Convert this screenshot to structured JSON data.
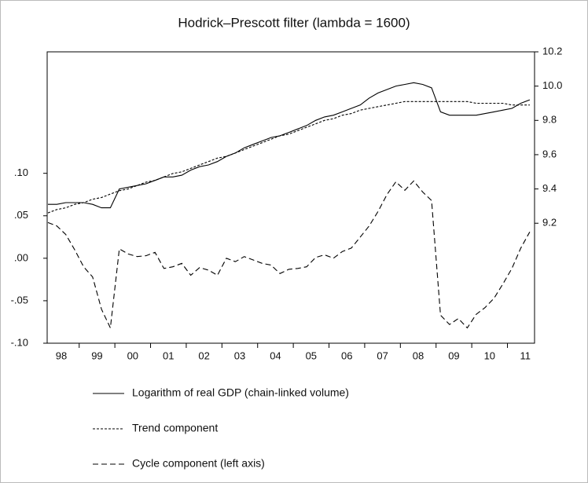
{
  "chart_data": {
    "type": "line",
    "title": "Hodrick–Prescott filter (lambda = 1600)",
    "categories": [
      "98",
      null,
      null,
      null,
      "99",
      null,
      null,
      null,
      "00",
      null,
      null,
      null,
      "01",
      null,
      null,
      null,
      "02",
      null,
      null,
      null,
      "03",
      null,
      null,
      null,
      "04",
      null,
      null,
      null,
      "05",
      null,
      null,
      null,
      "06",
      null,
      null,
      null,
      "07",
      null,
      null,
      null,
      "08",
      null,
      null,
      null,
      "09",
      null,
      null,
      null,
      "10",
      null,
      null,
      null,
      "11",
      null,
      null
    ],
    "series": [
      {
        "name": "Logarithm of real GDP (chain-linked volume)",
        "color": "#000000",
        "dash": "solid",
        "axis": "y2",
        "values": [
          9.31,
          9.31,
          9.32,
          9.32,
          9.32,
          9.31,
          9.29,
          9.29,
          9.4,
          9.41,
          9.42,
          9.43,
          9.45,
          9.47,
          9.47,
          9.48,
          9.51,
          9.53,
          9.54,
          9.56,
          9.59,
          9.61,
          9.64,
          9.66,
          9.68,
          9.7,
          9.71,
          9.73,
          9.75,
          9.77,
          9.8,
          9.82,
          9.83,
          9.85,
          9.87,
          9.89,
          9.93,
          9.96,
          9.98,
          10.0,
          10.01,
          10.02,
          10.01,
          9.99,
          9.85,
          9.83,
          9.83,
          9.83,
          9.83,
          9.84,
          9.85,
          9.86,
          9.87,
          9.9,
          9.92
        ]
      },
      {
        "name": "Trend component",
        "color": "#000000",
        "dash": "short",
        "axis": "y2",
        "values": [
          9.26,
          9.28,
          9.29,
          9.31,
          9.32,
          9.34,
          9.35,
          9.37,
          9.39,
          9.4,
          9.42,
          9.44,
          9.45,
          9.47,
          9.49,
          9.5,
          9.52,
          9.54,
          9.56,
          9.58,
          9.59,
          9.61,
          9.63,
          9.65,
          9.67,
          9.69,
          9.71,
          9.72,
          9.74,
          9.76,
          9.78,
          9.8,
          9.81,
          9.83,
          9.84,
          9.86,
          9.87,
          9.88,
          9.89,
          9.9,
          9.91,
          9.91,
          9.91,
          9.91,
          9.91,
          9.91,
          9.91,
          9.91,
          9.9,
          9.9,
          9.9,
          9.9,
          9.89,
          9.89,
          9.89
        ]
      },
      {
        "name": "Cycle component (left axis)",
        "color": "#000000",
        "dash": "long",
        "axis": "y",
        "values": [
          0.042,
          0.038,
          0.028,
          0.01,
          -0.01,
          -0.022,
          -0.06,
          -0.082,
          0.011,
          0.005,
          0.002,
          0.003,
          0.007,
          -0.012,
          -0.01,
          -0.006,
          -0.02,
          -0.011,
          -0.014,
          -0.02,
          0.0,
          -0.004,
          0.002,
          -0.002,
          -0.006,
          -0.008,
          -0.018,
          -0.013,
          -0.012,
          -0.01,
          0.001,
          0.004,
          0.0,
          0.008,
          0.012,
          0.025,
          0.038,
          0.055,
          0.075,
          0.09,
          0.08,
          0.091,
          0.078,
          0.068,
          -0.067,
          -0.078,
          -0.071,
          -0.082,
          -0.066,
          -0.058,
          -0.047,
          -0.03,
          -0.012,
          0.012,
          0.031
        ]
      }
    ],
    "ylim": [
      -0.1,
      0.243
    ],
    "yticks": [
      {
        "value": -0.1,
        "label": "-.10"
      },
      {
        "value": -0.05,
        "label": "-.05"
      },
      {
        "value": 0,
        "label": ".00"
      },
      {
        "value": 0.05,
        "label": ".05"
      },
      {
        "value": 0.1,
        "label": ".10"
      }
    ],
    "y2lim": [
      8.5,
      10.2
    ],
    "y2ticks": [
      9.2,
      9.4,
      9.6,
      {
        "value": 9.8,
        "label": "9.8"
      },
      {
        "value": 10,
        "label": "10.0"
      },
      10.2
    ],
    "grid": false,
    "legend": "bottom"
  }
}
